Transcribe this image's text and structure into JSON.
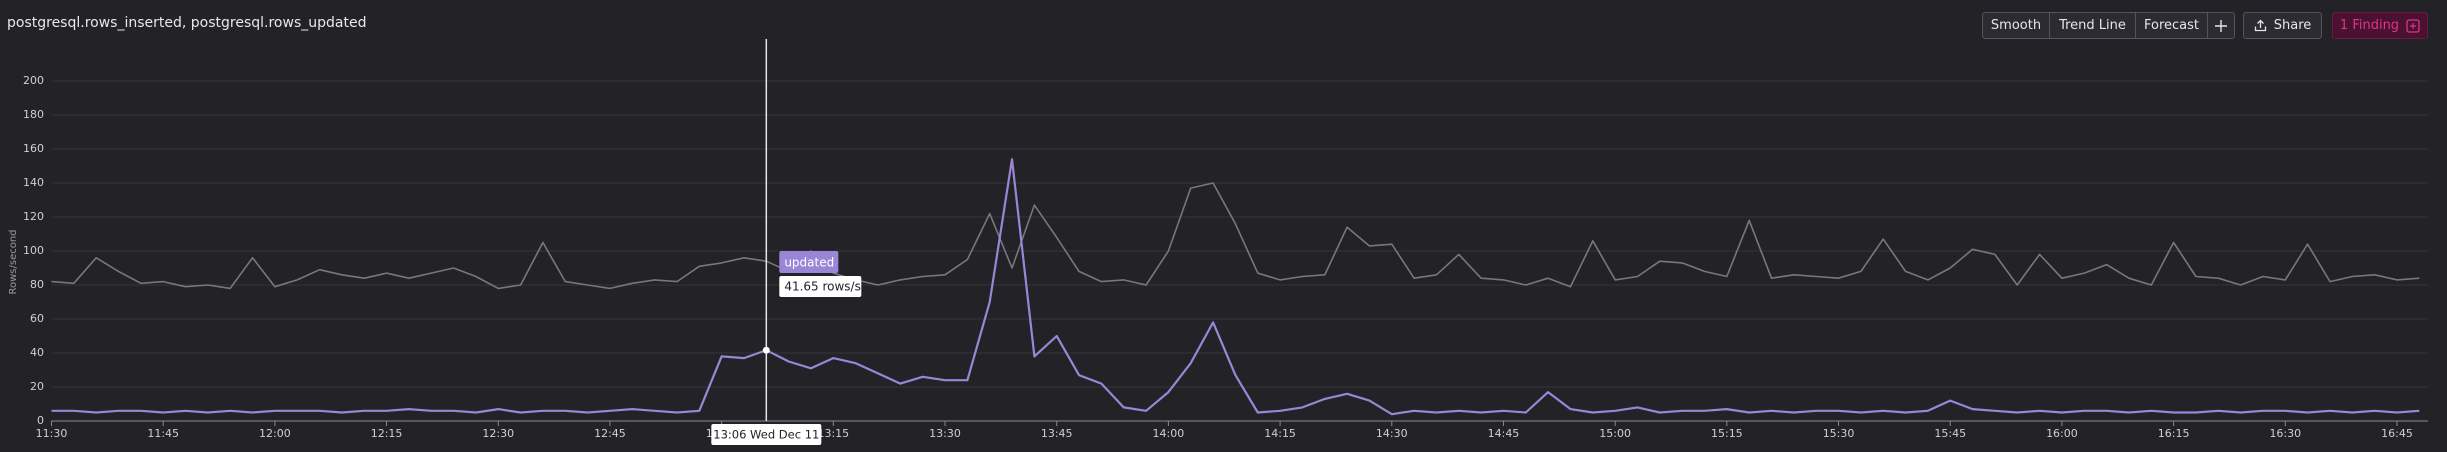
{
  "chart_data": {
    "type": "line",
    "title": "postgresql.rows_inserted, postgresql.rows_updated",
    "y_label": "Rows/second",
    "x": [
      "11:30",
      "11:33",
      "11:36",
      "11:39",
      "11:42",
      "11:45",
      "11:48",
      "11:51",
      "11:54",
      "11:57",
      "12:00",
      "12:03",
      "12:06",
      "12:09",
      "12:12",
      "12:15",
      "12:18",
      "12:21",
      "12:24",
      "12:27",
      "12:30",
      "12:33",
      "12:36",
      "12:39",
      "12:42",
      "12:45",
      "12:48",
      "12:51",
      "12:54",
      "12:57",
      "13:00",
      "13:03",
      "13:06",
      "13:09",
      "13:12",
      "13:15",
      "13:18",
      "13:21",
      "13:24",
      "13:27",
      "13:30",
      "13:33",
      "13:36",
      "13:39",
      "13:42",
      "13:45",
      "13:48",
      "13:51",
      "13:54",
      "13:57",
      "14:00",
      "14:03",
      "14:06",
      "14:09",
      "14:12",
      "14:15",
      "14:18",
      "14:21",
      "14:24",
      "14:27",
      "14:30",
      "14:33",
      "14:36",
      "14:39",
      "14:42",
      "14:45",
      "14:48",
      "14:51",
      "14:54",
      "14:57",
      "15:00",
      "15:03",
      "15:06",
      "15:09",
      "15:12",
      "15:15",
      "15:18",
      "15:21",
      "15:24",
      "15:27",
      "15:30",
      "15:33",
      "15:36",
      "15:39",
      "15:42",
      "15:45",
      "15:48",
      "15:51",
      "15:54",
      "15:57",
      "16:00",
      "16:03",
      "16:06",
      "16:09",
      "16:12",
      "16:15",
      "16:18",
      "16:21",
      "16:24",
      "16:27",
      "16:30",
      "16:33",
      "16:36",
      "16:39",
      "16:42",
      "16:45",
      "16:48"
    ],
    "series": [
      {
        "color": "#77777c",
        "values": [
          82,
          81,
          96,
          88,
          81,
          82,
          79,
          80,
          78,
          96,
          79,
          83,
          89,
          86,
          84,
          87,
          84,
          87,
          90,
          85,
          78,
          80,
          105,
          82,
          80,
          78,
          81,
          83,
          82,
          91,
          93,
          96,
          94,
          88,
          100,
          87,
          83,
          80,
          83,
          85,
          86,
          95,
          122,
          90,
          127,
          108,
          88,
          82,
          83,
          80,
          100,
          137,
          140,
          116,
          87,
          83,
          85,
          86,
          114,
          103,
          104,
          84,
          86,
          98,
          84,
          83,
          80,
          84,
          79,
          106,
          83,
          85,
          94,
          93,
          88,
          85,
          118,
          84,
          86,
          85,
          84,
          88,
          107,
          88,
          83,
          90,
          101,
          98,
          80,
          98,
          84,
          87,
          92,
          84,
          80,
          105,
          85,
          84,
          80,
          85,
          83,
          104,
          82,
          85,
          86,
          83,
          84
        ]
      },
      {
        "name": "updated",
        "color": "#9a86d6",
        "values": [
          6,
          6,
          5,
          6,
          6,
          5,
          6,
          5,
          6,
          5,
          6,
          6,
          6,
          5,
          6,
          6,
          7,
          6,
          6,
          5,
          7,
          5,
          6,
          6,
          5,
          6,
          7,
          6,
          5,
          6,
          38,
          37,
          41.65,
          35,
          31,
          37,
          34,
          28,
          22,
          26,
          24,
          24,
          70,
          154,
          38,
          50,
          27,
          22,
          8,
          6,
          17,
          34,
          58,
          27,
          5,
          6,
          8,
          13,
          16,
          12,
          4,
          6,
          5,
          6,
          5,
          6,
          5,
          17,
          7,
          5,
          6,
          8,
          5,
          6,
          6,
          7,
          5,
          6,
          5,
          6,
          6,
          5,
          6,
          5,
          6,
          12,
          7,
          6,
          5,
          6,
          5,
          6,
          6,
          5,
          6,
          5,
          5,
          6,
          5,
          6,
          6,
          5,
          6,
          5,
          6,
          5,
          6
        ]
      }
    ],
    "ylim": [
      0,
      200
    ],
    "yticks": [
      0,
      20,
      40,
      60,
      80,
      100,
      120,
      140,
      160,
      180,
      200
    ],
    "xticks": [
      "11:30",
      "11:45",
      "12:00",
      "12:15",
      "12:30",
      "12:45",
      "13:00",
      "13:15",
      "13:30",
      "13:45",
      "14:00",
      "14:15",
      "14:30",
      "14:45",
      "15:00",
      "15:15",
      "15:30",
      "15:45",
      "16:00",
      "16:15",
      "16:30",
      "16:45"
    ],
    "grid": true,
    "tooltip": {
      "value": "41.65 rows/s",
      "time": "13:06 Wed Dec 11"
    }
  },
  "toolbar": {
    "buttons": [
      "Smooth",
      "Trend Line",
      "Forecast"
    ],
    "share": "Share",
    "finding": "1 Finding"
  }
}
